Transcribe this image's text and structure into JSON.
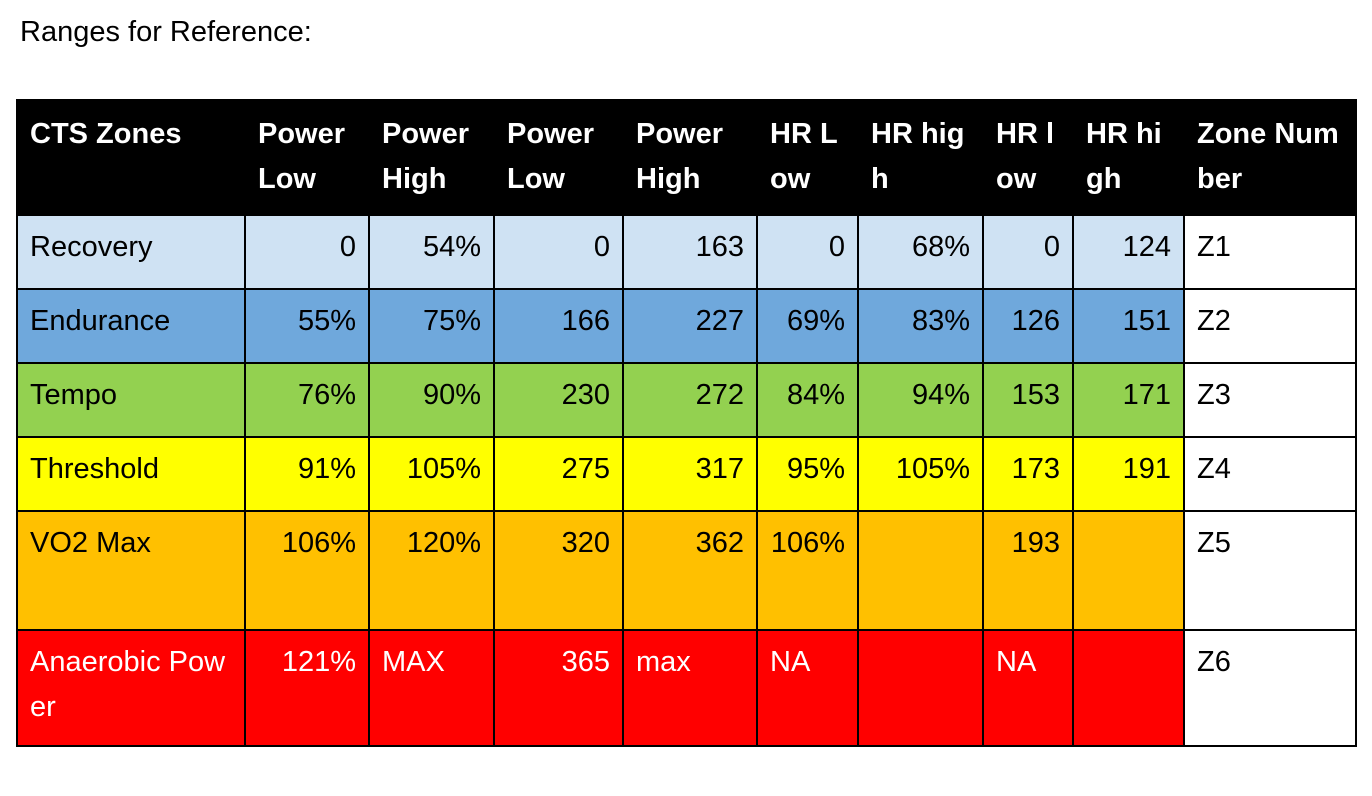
{
  "heading": "Ranges for Reference:",
  "colors": {
    "header_bg": "#000000",
    "recovery": "#cfe2f3",
    "endurance": "#6fa8dc",
    "tempo": "#93d150",
    "threshold": "#ffff00",
    "vo2max": "#ffc000",
    "anaerobic": "#ff0000",
    "zone_number_bg": "#ffffff"
  },
  "table": {
    "headers": [
      "CTS Zones",
      "Power Low",
      "Power High",
      "Power Low",
      "Power High",
      "HR Low",
      "HR high",
      "HR low",
      "HR high",
      "Zone Number"
    ],
    "rows": [
      {
        "cells": [
          "Recovery",
          "0",
          "54%",
          "0",
          "163",
          "0",
          "68%",
          "0",
          "124",
          "Z1"
        ]
      },
      {
        "cells": [
          "Endurance",
          "55%",
          "75%",
          "166",
          "227",
          "69%",
          "83%",
          "126",
          "151",
          "Z2"
        ]
      },
      {
        "cells": [
          "Tempo",
          "76%",
          "90%",
          "230",
          "272",
          "84%",
          "94%",
          "153",
          "171",
          "Z3"
        ]
      },
      {
        "cells": [
          "Threshold",
          "91%",
          "105%",
          "275",
          "317",
          "95%",
          "105%",
          "173",
          "191",
          "Z4"
        ]
      },
      {
        "cells": [
          "VO2 Max",
          "106%",
          "120%",
          "320",
          "362",
          "106%",
          "",
          "193",
          "",
          "Z5"
        ]
      },
      {
        "cells": [
          "Anaerobic Power",
          "121%",
          "MAX",
          "365",
          "max",
          "NA",
          "",
          "NA",
          "",
          "Z6"
        ]
      }
    ]
  }
}
